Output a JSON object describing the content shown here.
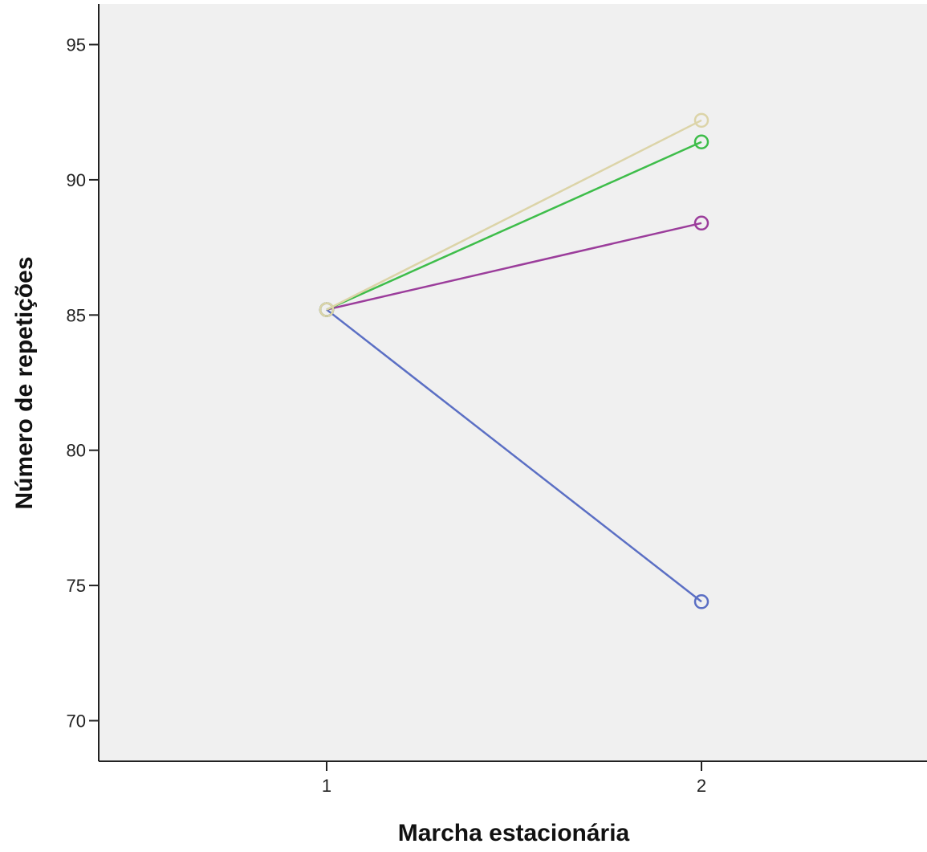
{
  "chart_data": {
    "type": "line",
    "xlabel": "Marcha estacionária",
    "ylabel": "Número de repetições",
    "x": [
      1,
      2
    ],
    "x_tick_labels": [
      "1",
      "2"
    ],
    "ylim": [
      68.5,
      96.5
    ],
    "y_ticks": [
      70,
      75,
      80,
      85,
      90,
      95
    ],
    "y_tick_labels": [
      "70",
      "75",
      "80",
      "85",
      "90",
      "95"
    ],
    "grid": false,
    "legend": "none",
    "plot_background": "#f0f0f0",
    "series": [
      {
        "color": "#5b6fc4",
        "values": [
          85.2,
          74.4
        ]
      },
      {
        "color": "#9b3d9b",
        "values": [
          85.2,
          88.4
        ]
      },
      {
        "color": "#3ebd4a",
        "values": [
          85.2,
          91.4
        ]
      },
      {
        "color": "#dcd4a8",
        "values": [
          85.2,
          92.2
        ]
      }
    ]
  }
}
